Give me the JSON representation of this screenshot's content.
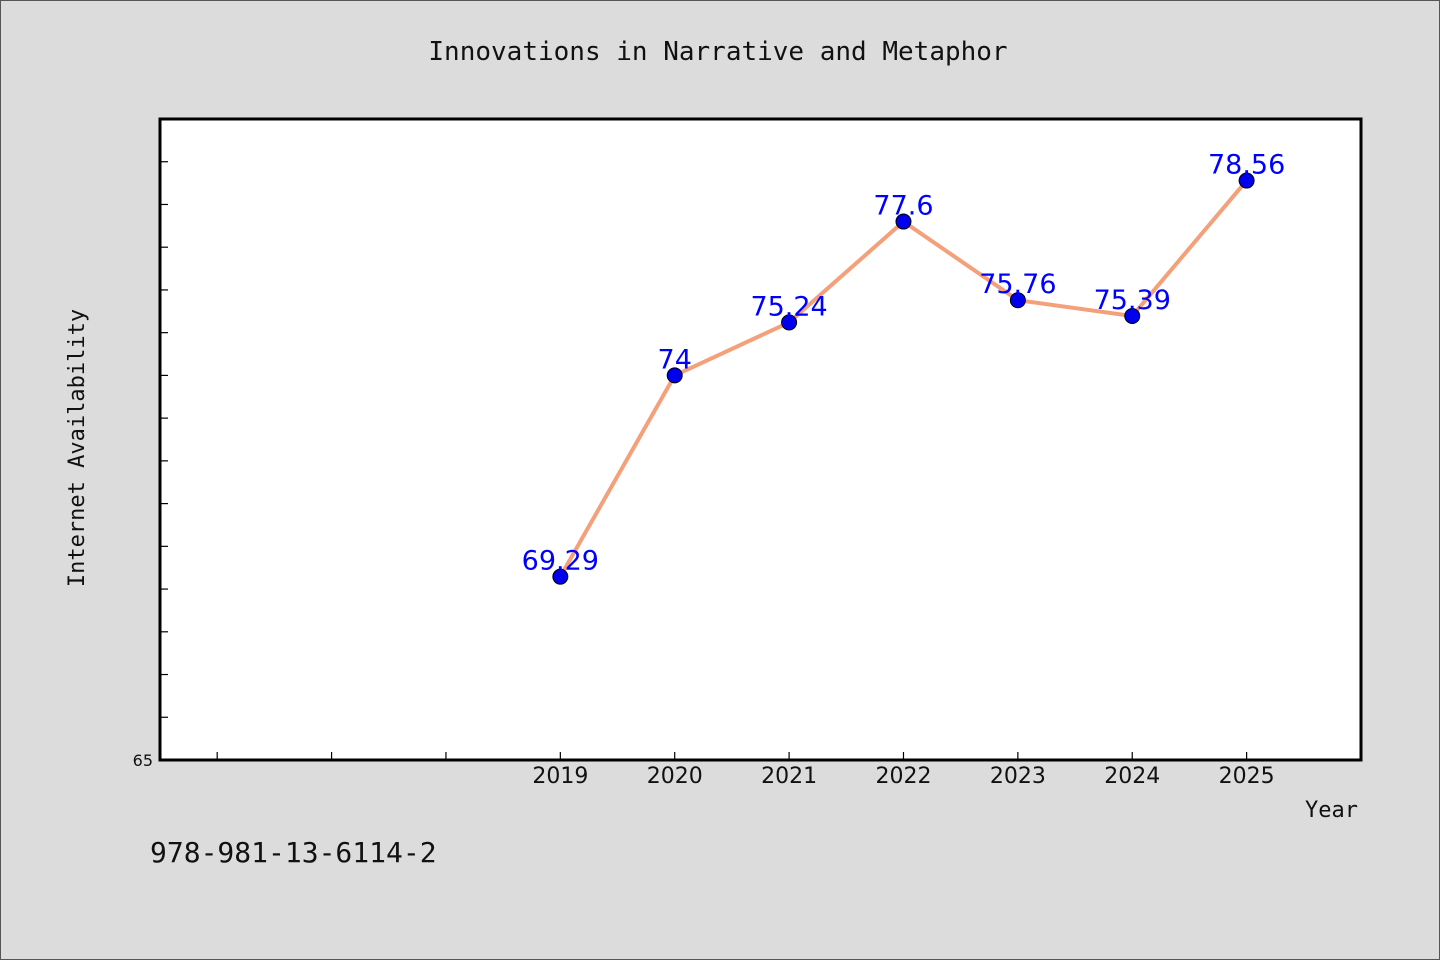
{
  "chart_data": {
    "type": "line",
    "title": "Innovations in Narrative and Metaphor",
    "xlabel": "Year",
    "ylabel": "Internet Availability",
    "categories": [
      "2019",
      "2020",
      "2021",
      "2022",
      "2023",
      "2024",
      "2025"
    ],
    "series": [
      {
        "values": [
          69.29,
          74,
          75.24,
          77.6,
          75.76,
          75.39,
          78.56
        ],
        "data_labels": [
          "69.29",
          "74",
          "75.24",
          "77.6",
          "75.76",
          "75.39",
          "78.56"
        ]
      }
    ],
    "x_range": [
      2015.5,
      2026
    ],
    "ylim": [
      65,
      80
    ],
    "y_tick_labels": [
      "65"
    ],
    "y_minor_tick_step": 1,
    "x_minor_ticks": [
      2016,
      2017,
      2018
    ],
    "grid": false,
    "legend": "none",
    "colors": {
      "line": "#f4a07a",
      "marker": "#0000ee",
      "label": "#0000ff",
      "background": "#dcdcdc",
      "plot_background": "#ffffff"
    }
  },
  "footer": {
    "isbn": "978-981-13-6114-2"
  }
}
